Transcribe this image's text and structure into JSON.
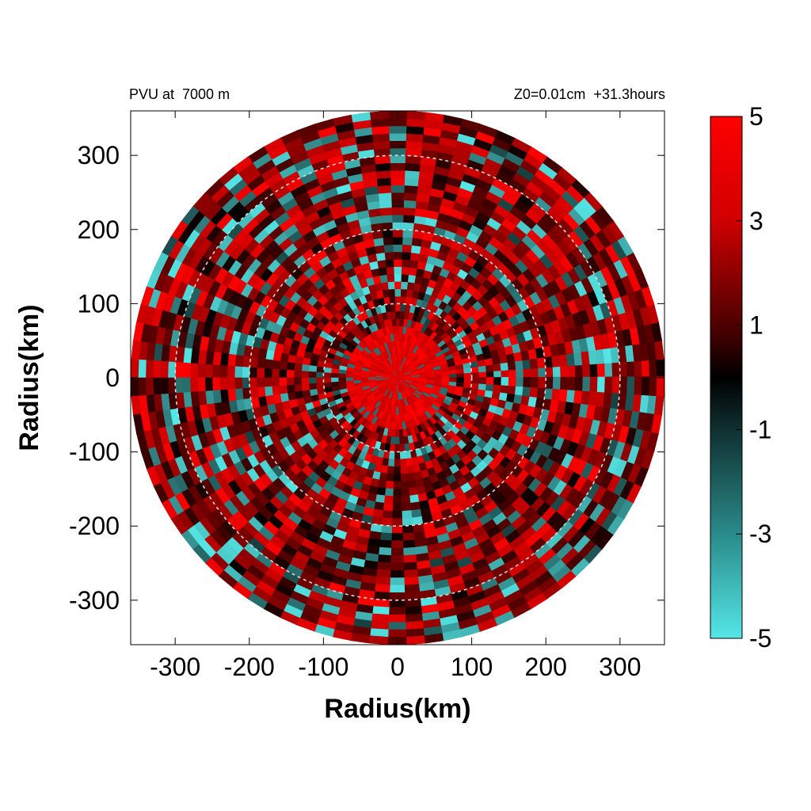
{
  "chart_data": {
    "type": "heatmap",
    "title_left": "PVU at  7000 m",
    "title_right": "Z0=0.01cm  +31.3hours",
    "xlabel": "Radius(km)",
    "ylabel": "Radius(km)",
    "xlim": [
      -360,
      360
    ],
    "ylim": [
      -360,
      360
    ],
    "x_ticks": [
      -300,
      -200,
      -100,
      0,
      100,
      200,
      300
    ],
    "y_ticks": [
      300,
      200,
      100,
      0,
      -100,
      -200,
      -300
    ],
    "domain_radius_km": 360,
    "reference_circles_km": [
      100,
      200,
      300
    ],
    "grid": false,
    "colorbar": {
      "range": [
        -5,
        5
      ],
      "ticks": [
        5,
        3,
        1,
        -1,
        -3,
        -5
      ],
      "colors": {
        "high": "#ff0000",
        "mid": "#000000",
        "low": "#55e6e6"
      },
      "placement": "right"
    },
    "description_values": {
      "core_value": 5,
      "core_radius_km": 70
    }
  }
}
